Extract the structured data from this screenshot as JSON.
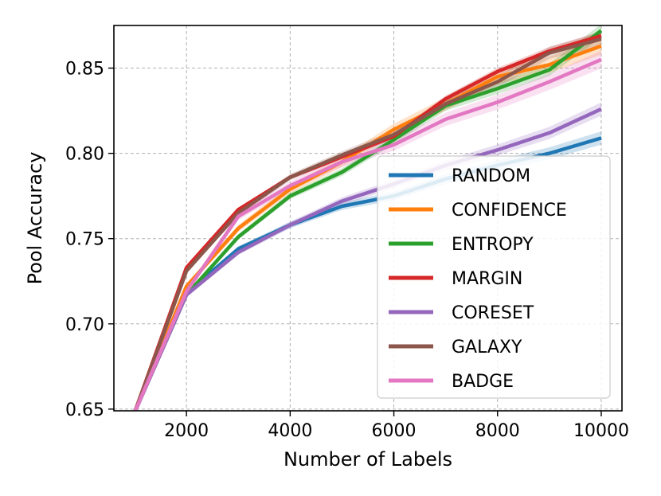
{
  "chart_data": {
    "type": "line",
    "title": "",
    "xlabel": "Number of Labels",
    "ylabel": "Pool Accuracy",
    "xlim": [
      600,
      10400
    ],
    "ylim": [
      0.649,
      0.875
    ],
    "xticks": [
      2000,
      4000,
      6000,
      8000,
      10000
    ],
    "xtick_labels": [
      "2000",
      "4000",
      "6000",
      "8000",
      "10000"
    ],
    "yticks": [
      0.65,
      0.7,
      0.75,
      0.8,
      0.85
    ],
    "ytick_labels": [
      "0.65",
      "0.70",
      "0.75",
      "0.80",
      "0.85"
    ],
    "grid": true,
    "legend_position": "lower-right",
    "x": [
      1000,
      2000,
      3000,
      4000,
      5000,
      6000,
      7000,
      8000,
      9000,
      10000
    ],
    "series": [
      {
        "name": "RANDOM",
        "color": "#1f77b4",
        "values": [
          0.648,
          0.718,
          0.744,
          0.758,
          0.769,
          0.775,
          0.785,
          0.793,
          0.8,
          0.809
        ],
        "band": 0.003
      },
      {
        "name": "CONFIDENCE",
        "color": "#ff7f0e",
        "values": [
          0.648,
          0.722,
          0.756,
          0.779,
          0.795,
          0.814,
          0.829,
          0.845,
          0.852,
          0.863
        ],
        "band": 0.004
      },
      {
        "name": "ENTROPY",
        "color": "#2ca02c",
        "values": [
          0.648,
          0.717,
          0.751,
          0.775,
          0.789,
          0.808,
          0.828,
          0.838,
          0.849,
          0.872
        ],
        "band": 0.003
      },
      {
        "name": "MARGIN",
        "color": "#d62728",
        "values": [
          0.648,
          0.733,
          0.767,
          0.786,
          0.798,
          0.81,
          0.832,
          0.848,
          0.86,
          0.869
        ],
        "band": 0.002
      },
      {
        "name": "CORESET",
        "color": "#9467bd",
        "values": [
          0.648,
          0.717,
          0.742,
          0.758,
          0.772,
          0.782,
          0.793,
          0.802,
          0.812,
          0.826
        ],
        "band": 0.003
      },
      {
        "name": "GALAXY",
        "color": "#8c564b",
        "values": [
          0.648,
          0.731,
          0.765,
          0.786,
          0.799,
          0.811,
          0.829,
          0.842,
          0.859,
          0.867
        ],
        "band": 0.003
      },
      {
        "name": "BADGE",
        "color": "#e377c2",
        "values": [
          0.648,
          0.719,
          0.763,
          0.781,
          0.795,
          0.805,
          0.82,
          0.83,
          0.842,
          0.855
        ],
        "band": 0.004
      }
    ]
  }
}
